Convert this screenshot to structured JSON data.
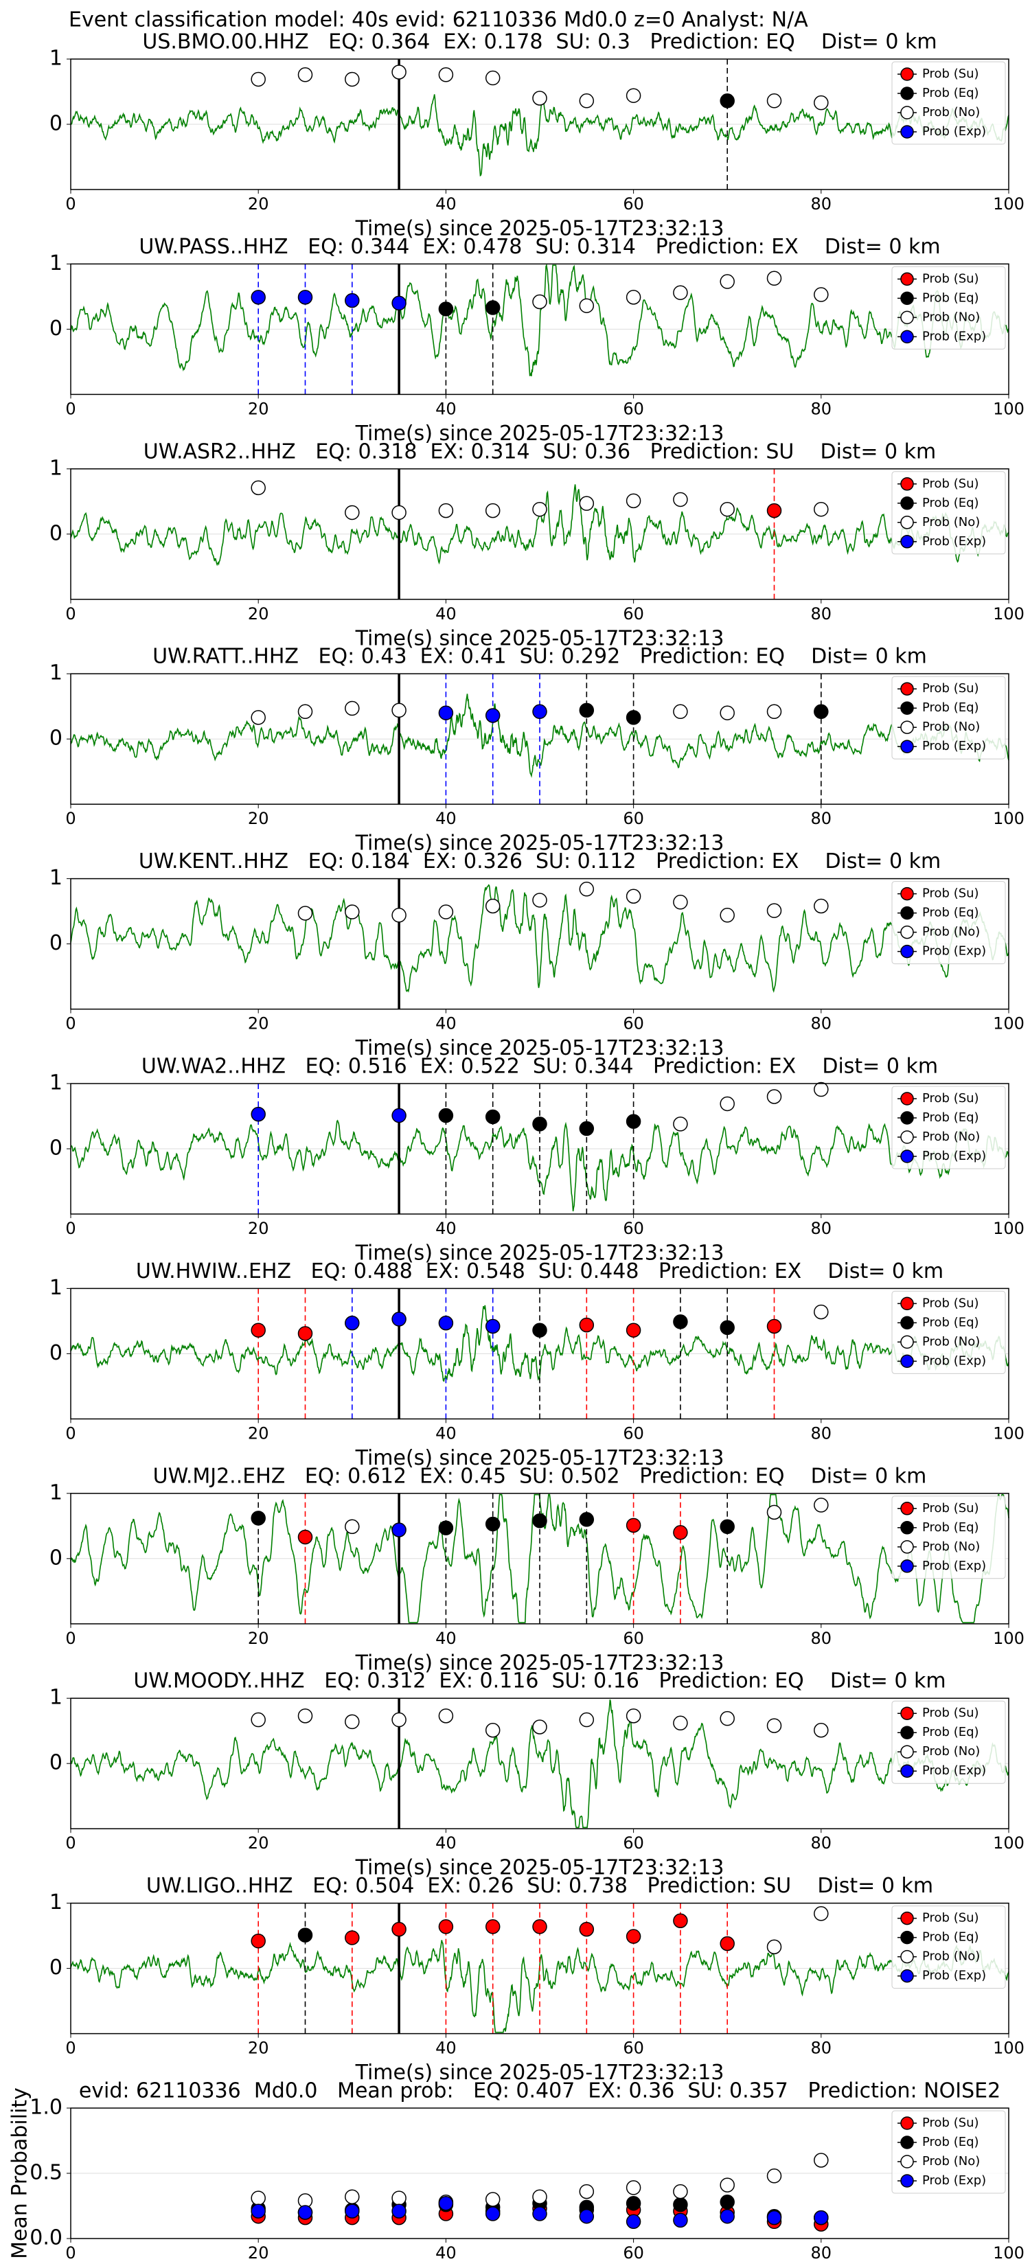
{
  "figure_title": "Event classification model: 40s evid: 62110336 Md0.0 z=0 Analyst: N/A",
  "chart_data": [
    {
      "type": "scatter",
      "title": "US.BMO.00.HHZ   EQ: 0.364  EX: 0.178  SU: 0.3   Prediction: EQ    Dist= 0 km",
      "xlabel": "Time(s) since 2025-05-17T23:32:13",
      "xlim": [
        0,
        100
      ],
      "xticks": [
        0,
        20,
        40,
        60,
        80,
        100
      ],
      "ylim": [
        -1,
        1
      ],
      "yticks": [
        0,
        1
      ],
      "grid": true,
      "legend": "upper right",
      "event_line": 35,
      "series": [
        {
          "name": "Prob (Su)",
          "color": "red",
          "guide_lines": true,
          "x": [],
          "values": []
        },
        {
          "name": "Prob (Eq)",
          "color": "black",
          "guide_lines": true,
          "x": [
            70
          ],
          "values": [
            0.36
          ]
        },
        {
          "name": "Prob (No)",
          "color": "white",
          "guide_lines": false,
          "x": [
            20,
            25,
            30,
            35,
            40,
            45,
            50,
            55,
            60,
            75,
            80
          ],
          "values": [
            0.69,
            0.76,
            0.69,
            0.8,
            0.76,
            0.71,
            0.4,
            0.36,
            0.44,
            0.36,
            0.33
          ]
        },
        {
          "name": "Prob (Exp)",
          "color": "blue",
          "guide_lines": true,
          "x": [],
          "values": []
        }
      ]
    },
    {
      "type": "scatter",
      "title": "UW.PASS..HHZ   EQ: 0.344  EX: 0.478  SU: 0.314   Prediction: EX    Dist= 0 km",
      "xlabel": "Time(s) since 2025-05-17T23:32:13",
      "xlim": [
        0,
        100
      ],
      "xticks": [
        0,
        20,
        40,
        60,
        80,
        100
      ],
      "ylim": [
        -1,
        1
      ],
      "yticks": [
        0,
        1
      ],
      "grid": true,
      "legend": "upper right",
      "event_line": 35,
      "series": [
        {
          "name": "Prob (Su)",
          "color": "red",
          "guide_lines": true,
          "x": [],
          "values": []
        },
        {
          "name": "Prob (Eq)",
          "color": "black",
          "guide_lines": true,
          "x": [
            40,
            45
          ],
          "values": [
            0.31,
            0.33
          ]
        },
        {
          "name": "Prob (No)",
          "color": "white",
          "guide_lines": false,
          "x": [
            50,
            55,
            60,
            65,
            70,
            75,
            80
          ],
          "values": [
            0.42,
            0.36,
            0.49,
            0.56,
            0.73,
            0.78,
            0.53
          ]
        },
        {
          "name": "Prob (Exp)",
          "color": "blue",
          "guide_lines": true,
          "x": [
            20,
            25,
            30,
            35
          ],
          "values": [
            0.49,
            0.49,
            0.44,
            0.4
          ]
        }
      ]
    },
    {
      "type": "scatter",
      "title": "UW.ASR2..HHZ   EQ: 0.318  EX: 0.314  SU: 0.36   Prediction: SU    Dist= 0 km",
      "xlabel": "Time(s) since 2025-05-17T23:32:13",
      "xlim": [
        0,
        100
      ],
      "xticks": [
        0,
        20,
        40,
        60,
        80,
        100
      ],
      "ylim": [
        -1,
        1
      ],
      "yticks": [
        0,
        1
      ],
      "grid": true,
      "legend": "upper right",
      "event_line": 35,
      "series": [
        {
          "name": "Prob (Su)",
          "color": "red",
          "guide_lines": true,
          "x": [
            75
          ],
          "values": [
            0.36
          ]
        },
        {
          "name": "Prob (Eq)",
          "color": "black",
          "guide_lines": true,
          "x": [],
          "values": []
        },
        {
          "name": "Prob (No)",
          "color": "white",
          "guide_lines": false,
          "x": [
            20,
            30,
            35,
            40,
            45,
            50,
            55,
            60,
            65,
            70,
            80
          ],
          "values": [
            0.71,
            0.33,
            0.33,
            0.36,
            0.36,
            0.38,
            0.47,
            0.51,
            0.53,
            0.38,
            0.38
          ]
        },
        {
          "name": "Prob (Exp)",
          "color": "blue",
          "guide_lines": true,
          "x": [],
          "values": []
        }
      ]
    },
    {
      "type": "scatter",
      "title": "UW.RATT..HHZ   EQ: 0.43  EX: 0.41  SU: 0.292   Prediction: EQ    Dist= 0 km",
      "xlabel": "Time(s) since 2025-05-17T23:32:13",
      "xlim": [
        0,
        100
      ],
      "xticks": [
        0,
        20,
        40,
        60,
        80,
        100
      ],
      "ylim": [
        -1,
        1
      ],
      "yticks": [
        0,
        1
      ],
      "grid": true,
      "legend": "upper right",
      "event_line": 35,
      "series": [
        {
          "name": "Prob (Su)",
          "color": "red",
          "guide_lines": true,
          "x": [],
          "values": []
        },
        {
          "name": "Prob (Eq)",
          "color": "black",
          "guide_lines": true,
          "x": [
            55,
            60,
            80
          ],
          "values": [
            0.44,
            0.33,
            0.42
          ]
        },
        {
          "name": "Prob (No)",
          "color": "white",
          "guide_lines": false,
          "x": [
            20,
            25,
            30,
            35,
            65,
            70,
            75
          ],
          "values": [
            0.33,
            0.42,
            0.47,
            0.44,
            0.42,
            0.4,
            0.42
          ]
        },
        {
          "name": "Prob (Exp)",
          "color": "blue",
          "guide_lines": true,
          "x": [
            40,
            45,
            50
          ],
          "values": [
            0.4,
            0.36,
            0.42
          ]
        }
      ]
    },
    {
      "type": "scatter",
      "title": "UW.KENT..HHZ   EQ: 0.184  EX: 0.326  SU: 0.112   Prediction: EX    Dist= 0 km",
      "xlabel": "Time(s) since 2025-05-17T23:32:13",
      "xlim": [
        0,
        100
      ],
      "xticks": [
        0,
        20,
        40,
        60,
        80,
        100
      ],
      "ylim": [
        -1,
        1
      ],
      "yticks": [
        0,
        1
      ],
      "grid": true,
      "legend": "upper right",
      "event_line": 35,
      "series": [
        {
          "name": "Prob (Su)",
          "color": "red",
          "guide_lines": true,
          "x": [],
          "values": []
        },
        {
          "name": "Prob (Eq)",
          "color": "black",
          "guide_lines": true,
          "x": [],
          "values": []
        },
        {
          "name": "Prob (No)",
          "color": "white",
          "guide_lines": false,
          "x": [
            25,
            30,
            35,
            40,
            45,
            50,
            55,
            60,
            65,
            70,
            75,
            80
          ],
          "values": [
            0.47,
            0.49,
            0.44,
            0.49,
            0.58,
            0.67,
            0.84,
            0.73,
            0.64,
            0.44,
            0.51,
            0.58
          ]
        },
        {
          "name": "Prob (Exp)",
          "color": "blue",
          "guide_lines": true,
          "x": [],
          "values": []
        }
      ]
    },
    {
      "type": "scatter",
      "title": "UW.WA2..HHZ   EQ: 0.516  EX: 0.522  SU: 0.344   Prediction: EX    Dist= 0 km",
      "xlabel": "Time(s) since 2025-05-17T23:32:13",
      "xlim": [
        0,
        100
      ],
      "xticks": [
        0,
        20,
        40,
        60,
        80,
        100
      ],
      "ylim": [
        -1,
        1
      ],
      "yticks": [
        0,
        1
      ],
      "grid": true,
      "legend": "upper right",
      "event_line": 35,
      "series": [
        {
          "name": "Prob (Su)",
          "color": "red",
          "guide_lines": true,
          "x": [],
          "values": []
        },
        {
          "name": "Prob (Eq)",
          "color": "black",
          "guide_lines": true,
          "x": [
            40,
            45,
            50,
            55,
            60
          ],
          "values": [
            0.51,
            0.49,
            0.38,
            0.31,
            0.42
          ]
        },
        {
          "name": "Prob (No)",
          "color": "white",
          "guide_lines": false,
          "x": [
            65,
            70,
            75,
            80
          ],
          "values": [
            0.38,
            0.69,
            0.8,
            0.91
          ]
        },
        {
          "name": "Prob (Exp)",
          "color": "blue",
          "guide_lines": true,
          "x": [
            20,
            35
          ],
          "values": [
            0.53,
            0.51
          ]
        }
      ]
    },
    {
      "type": "scatter",
      "title": "UW.HWIW..EHZ   EQ: 0.488  EX: 0.548  SU: 0.448   Prediction: EX    Dist= 0 km",
      "xlabel": "Time(s) since 2025-05-17T23:32:13",
      "xlim": [
        0,
        100
      ],
      "xticks": [
        0,
        20,
        40,
        60,
        80,
        100
      ],
      "ylim": [
        -1,
        1
      ],
      "yticks": [
        0,
        1
      ],
      "grid": true,
      "legend": "upper right",
      "event_line": 35,
      "series": [
        {
          "name": "Prob (Su)",
          "color": "red",
          "guide_lines": true,
          "x": [
            20,
            25,
            55,
            60,
            75
          ],
          "values": [
            0.36,
            0.31,
            0.44,
            0.36,
            0.42
          ]
        },
        {
          "name": "Prob (Eq)",
          "color": "black",
          "guide_lines": true,
          "x": [
            50,
            65,
            70
          ],
          "values": [
            0.36,
            0.49,
            0.4
          ]
        },
        {
          "name": "Prob (No)",
          "color": "white",
          "guide_lines": false,
          "x": [
            80
          ],
          "values": [
            0.64
          ]
        },
        {
          "name": "Prob (Exp)",
          "color": "blue",
          "guide_lines": true,
          "x": [
            30,
            35,
            40,
            45
          ],
          "values": [
            0.47,
            0.53,
            0.47,
            0.42
          ]
        }
      ]
    },
    {
      "type": "scatter",
      "title": "UW.MJ2..EHZ   EQ: 0.612  EX: 0.45  SU: 0.502   Prediction: EQ    Dist= 0 km",
      "xlabel": "Time(s) since 2025-05-17T23:32:13",
      "xlim": [
        0,
        100
      ],
      "xticks": [
        0,
        20,
        40,
        60,
        80,
        100
      ],
      "ylim": [
        -1,
        1
      ],
      "yticks": [
        0,
        1
      ],
      "grid": true,
      "legend": "upper right",
      "event_line": 35,
      "series": [
        {
          "name": "Prob (Su)",
          "color": "red",
          "guide_lines": true,
          "x": [
            25,
            60,
            65
          ],
          "values": [
            0.33,
            0.51,
            0.4
          ]
        },
        {
          "name": "Prob (Eq)",
          "color": "black",
          "guide_lines": true,
          "x": [
            20,
            40,
            45,
            50,
            55,
            70
          ],
          "values": [
            0.62,
            0.47,
            0.53,
            0.58,
            0.6,
            0.49
          ]
        },
        {
          "name": "Prob (No)",
          "color": "white",
          "guide_lines": false,
          "x": [
            30,
            75,
            80
          ],
          "values": [
            0.49,
            0.71,
            0.82
          ]
        },
        {
          "name": "Prob (Exp)",
          "color": "blue",
          "guide_lines": true,
          "x": [
            35
          ],
          "values": [
            0.44
          ]
        }
      ]
    },
    {
      "type": "scatter",
      "title": "UW.MOODY..HHZ   EQ: 0.312  EX: 0.116  SU: 0.16   Prediction: EQ    Dist= 0 km",
      "xlabel": "Time(s) since 2025-05-17T23:32:13",
      "xlim": [
        0,
        100
      ],
      "xticks": [
        0,
        20,
        40,
        60,
        80,
        100
      ],
      "ylim": [
        -1,
        1
      ],
      "yticks": [
        0,
        1
      ],
      "grid": true,
      "legend": "upper right",
      "event_line": 35,
      "series": [
        {
          "name": "Prob (Su)",
          "color": "red",
          "guide_lines": true,
          "x": [],
          "values": []
        },
        {
          "name": "Prob (Eq)",
          "color": "black",
          "guide_lines": true,
          "x": [],
          "values": []
        },
        {
          "name": "Prob (No)",
          "color": "white",
          "guide_lines": false,
          "x": [
            20,
            25,
            30,
            35,
            40,
            45,
            50,
            55,
            60,
            65,
            70,
            75,
            80
          ],
          "values": [
            0.67,
            0.73,
            0.64,
            0.67,
            0.73,
            0.51,
            0.56,
            0.67,
            0.73,
            0.62,
            0.69,
            0.58,
            0.51
          ]
        },
        {
          "name": "Prob (Exp)",
          "color": "blue",
          "guide_lines": true,
          "x": [],
          "values": []
        }
      ]
    },
    {
      "type": "scatter",
      "title": "UW.LIGO..HHZ   EQ: 0.504  EX: 0.26  SU: 0.738   Prediction: SU    Dist= 0 km",
      "xlabel": "Time(s) since 2025-05-17T23:32:13",
      "xlim": [
        0,
        100
      ],
      "xticks": [
        0,
        20,
        40,
        60,
        80,
        100
      ],
      "ylim": [
        -1,
        1
      ],
      "yticks": [
        0,
        1
      ],
      "grid": true,
      "legend": "upper right",
      "event_line": 35,
      "series": [
        {
          "name": "Prob (Su)",
          "color": "red",
          "guide_lines": true,
          "x": [
            20,
            30,
            35,
            40,
            45,
            50,
            55,
            60,
            65,
            70
          ],
          "values": [
            0.42,
            0.47,
            0.6,
            0.64,
            0.64,
            0.64,
            0.6,
            0.49,
            0.73,
            0.38
          ]
        },
        {
          "name": "Prob (Eq)",
          "color": "black",
          "guide_lines": true,
          "x": [
            25
          ],
          "values": [
            0.51
          ]
        },
        {
          "name": "Prob (No)",
          "color": "white",
          "guide_lines": false,
          "x": [
            75,
            80
          ],
          "values": [
            0.33,
            0.84
          ]
        },
        {
          "name": "Prob (Exp)",
          "color": "blue",
          "guide_lines": true,
          "x": [],
          "values": []
        }
      ]
    },
    {
      "type": "scatter",
      "title": "evid: 62110336  Md0.0   Mean prob:   EQ: 0.407  EX: 0.36  SU: 0.357   Prediction: NOISE2",
      "ylabel": "Mean Probability",
      "xlim": [
        0,
        100
      ],
      "xticks": [
        0,
        20,
        40,
        60,
        80,
        100
      ],
      "ylim": [
        0,
        1
      ],
      "yticks": [
        {
          "value": 0,
          "label": "0.0"
        },
        {
          "value": 0.5,
          "label": "0.5"
        },
        {
          "value": 1,
          "label": "1.0"
        }
      ],
      "grid": true,
      "legend": "upper right",
      "series": [
        {
          "name": "Prob (Su)",
          "color": "red",
          "guide_lines": false,
          "x": [
            20,
            25,
            30,
            35,
            40,
            45,
            50,
            55,
            60,
            65,
            70,
            75,
            80
          ],
          "values": [
            0.17,
            0.16,
            0.16,
            0.16,
            0.19,
            0.21,
            0.23,
            0.22,
            0.22,
            0.21,
            0.2,
            0.13,
            0.11
          ]
        },
        {
          "name": "Prob (Eq)",
          "color": "black",
          "guide_lines": false,
          "x": [
            20,
            25,
            30,
            35,
            40,
            45,
            50,
            55,
            60,
            65,
            70,
            75,
            80
          ],
          "values": [
            0.23,
            0.2,
            0.22,
            0.26,
            0.26,
            0.24,
            0.27,
            0.24,
            0.27,
            0.26,
            0.28,
            0.17,
            0.16
          ]
        },
        {
          "name": "Prob (No)",
          "color": "white",
          "guide_lines": false,
          "x": [
            20,
            25,
            30,
            35,
            40,
            45,
            50,
            55,
            60,
            65,
            70,
            75,
            80
          ],
          "values": [
            0.31,
            0.29,
            0.32,
            0.31,
            0.28,
            0.3,
            0.32,
            0.36,
            0.39,
            0.36,
            0.41,
            0.48,
            0.6
          ]
        },
        {
          "name": "Prob (Exp)",
          "color": "blue",
          "guide_lines": false,
          "x": [
            20,
            25,
            30,
            35,
            40,
            45,
            50,
            55,
            60,
            65,
            70,
            75,
            80
          ],
          "values": [
            0.21,
            0.2,
            0.21,
            0.21,
            0.27,
            0.19,
            0.19,
            0.17,
            0.13,
            0.14,
            0.17,
            0.16,
            0.16
          ]
        }
      ]
    }
  ]
}
